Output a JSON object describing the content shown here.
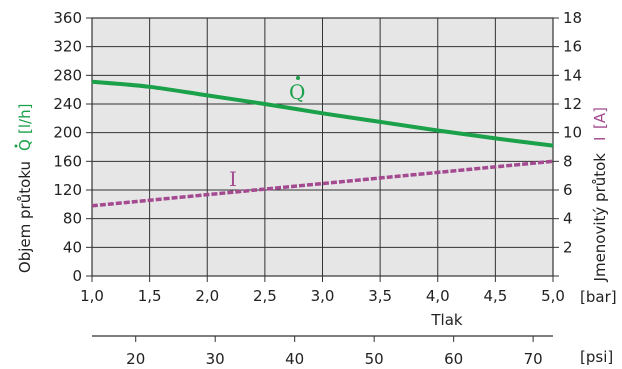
{
  "chart_data": {
    "type": "line",
    "x_axis": {
      "label": "Tlak",
      "unit": "[bar]",
      "range": [
        1.0,
        5.0
      ],
      "ticks": [
        "1,0",
        "1,5",
        "2,0",
        "2,5",
        "3,0",
        "3,5",
        "4,0",
        "4,5",
        "5,0"
      ]
    },
    "x_axis_secondary": {
      "unit": "[psi]",
      "range": [
        14.5,
        72.5
      ],
      "ticks": [
        "20",
        "30",
        "40",
        "50",
        "60",
        "70"
      ]
    },
    "y_axis_left": {
      "label": "Objem průtoku",
      "unit": "[l/h]",
      "range": [
        0,
        360
      ],
      "ticks": [
        "0",
        "40",
        "80",
        "120",
        "160",
        "200",
        "240",
        "280",
        "320",
        "360"
      ]
    },
    "y_axis_right": {
      "label": "Jmenovitý průtok",
      "unit": "[A]",
      "range": [
        0,
        18
      ],
      "ticks": [
        "2",
        "4",
        "6",
        "8",
        "10",
        "12",
        "14",
        "16",
        "18"
      ]
    },
    "grid": true,
    "series": [
      {
        "name": "Q",
        "axis": "left",
        "style": "solid",
        "color": "#1aa14a",
        "x": [
          1.0,
          1.5,
          2.0,
          2.5,
          3.0,
          3.5,
          4.0,
          4.5,
          5.0
        ],
        "y": [
          271,
          264,
          252,
          240,
          227,
          215,
          203,
          192,
          182
        ]
      },
      {
        "name": "I",
        "axis": "right",
        "style": "dashed",
        "color": "#a34a90",
        "x": [
          1.0,
          5.0
        ],
        "y": [
          4.9,
          8.0
        ]
      }
    ]
  },
  "colors": {
    "plot_background": "#e6e6e6",
    "grid": "#333333",
    "q_series": "#1aa14a",
    "i_series": "#a34a90"
  }
}
